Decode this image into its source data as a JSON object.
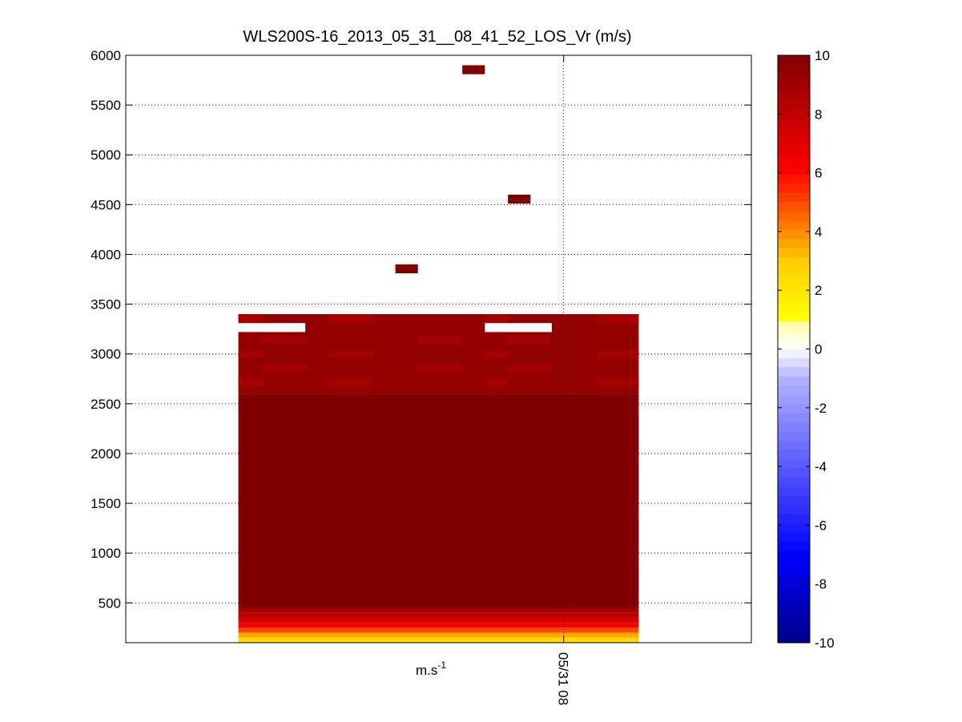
{
  "chart_data": {
    "type": "heatmap",
    "title": "WLS200S-16_2013_05_31__08_41_52_LOS_Vr (m/s)",
    "xlabel": "m.s-1",
    "xlabel_base": "m.s",
    "xlabel_sup": "-1",
    "ylabel": "",
    "ylim": [
      100,
      6000
    ],
    "yticks": [
      500,
      1000,
      1500,
      2000,
      2500,
      3000,
      3500,
      4000,
      4500,
      5000,
      5500,
      6000
    ],
    "x_ticks": [
      {
        "label": "05/31 08",
        "position": 0.7
      }
    ],
    "grid": true,
    "colorbar": {
      "clim": [
        -10,
        10
      ],
      "ticks": [
        10,
        8,
        6,
        4,
        2,
        0,
        -2,
        -4,
        -6,
        -8,
        -10
      ],
      "colormap": "blue-white-yellow-red-darkred"
    },
    "data_region": {
      "x_extent": [
        0.18,
        0.82
      ],
      "altitude_range": [
        100,
        3400
      ]
    },
    "field_values": [
      {
        "altitude_range": [
          100,
          150
        ],
        "value": 2.5
      },
      {
        "altitude_range": [
          150,
          200
        ],
        "value": 3.5
      },
      {
        "altitude_range": [
          200,
          250
        ],
        "value": 5.0
      },
      {
        "altitude_range": [
          250,
          300
        ],
        "value": 6.3
      },
      {
        "altitude_range": [
          300,
          350
        ],
        "value": 7.3
      },
      {
        "altitude_range": [
          350,
          400
        ],
        "value": 8.2
      },
      {
        "altitude_range": [
          400,
          450
        ],
        "value": 9.0
      },
      {
        "altitude_range": [
          450,
          2600
        ],
        "value": 10
      },
      {
        "altitude_range": [
          2600,
          3400
        ],
        "value": 9.4
      }
    ],
    "isolated_cells": [
      {
        "x_range": [
          0.538,
          0.574
        ],
        "altitude_range": [
          5810,
          5900
        ],
        "value": 10
      },
      {
        "x_range": [
          0.611,
          0.647
        ],
        "altitude_range": [
          4510,
          4600
        ],
        "value": 10
      },
      {
        "x_range": [
          0.431,
          0.467
        ],
        "altitude_range": [
          3810,
          3900
        ],
        "value": 10
      }
    ],
    "missing_cells": [
      {
        "x_range": [
          0.18,
          0.287
        ],
        "altitude_range": [
          3220,
          3310
        ]
      },
      {
        "x_range": [
          0.574,
          0.681
        ],
        "altitude_range": [
          3220,
          3310
        ]
      }
    ]
  }
}
